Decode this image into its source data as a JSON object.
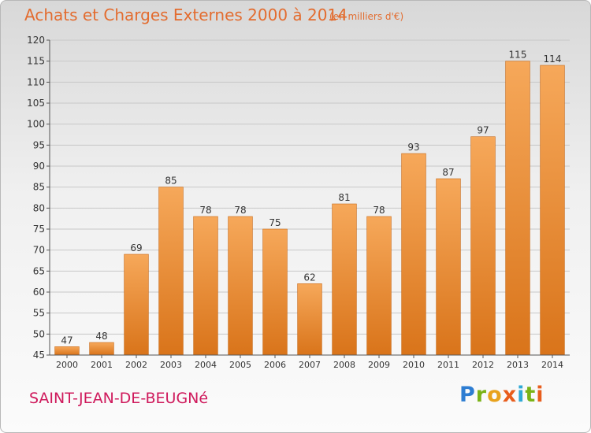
{
  "header": {
    "title": "Achats et Charges Externes 2000 à 2014",
    "unit": "(en milliers d'€)"
  },
  "footer": {
    "place": "SAINT-JEAN-DE-BEUGNé",
    "brand_letters": [
      "P",
      "r",
      "o",
      "x",
      "i",
      "t",
      "i"
    ]
  },
  "colors": {
    "bar_light": "#f6a85a",
    "bar_dark": "#d9741a",
    "title": "#e36c2f",
    "place": "#cf1a5c"
  },
  "chart_data": {
    "type": "bar",
    "title": "Achats et Charges Externes 2000 à 2014",
    "subtitle": "(en milliers d'€)",
    "categories": [
      "2000",
      "2001",
      "2002",
      "2003",
      "2004",
      "2005",
      "2006",
      "2007",
      "2008",
      "2009",
      "2010",
      "2011",
      "2012",
      "2013",
      "2014"
    ],
    "values": [
      47,
      48,
      69,
      85,
      78,
      78,
      75,
      62,
      81,
      78,
      93,
      87,
      97,
      115,
      114
    ],
    "ylim": [
      45,
      120
    ],
    "yticks": [
      45,
      50,
      55,
      60,
      65,
      70,
      75,
      80,
      85,
      90,
      95,
      100,
      105,
      110,
      115,
      120
    ],
    "grid": true,
    "legend": "none"
  }
}
